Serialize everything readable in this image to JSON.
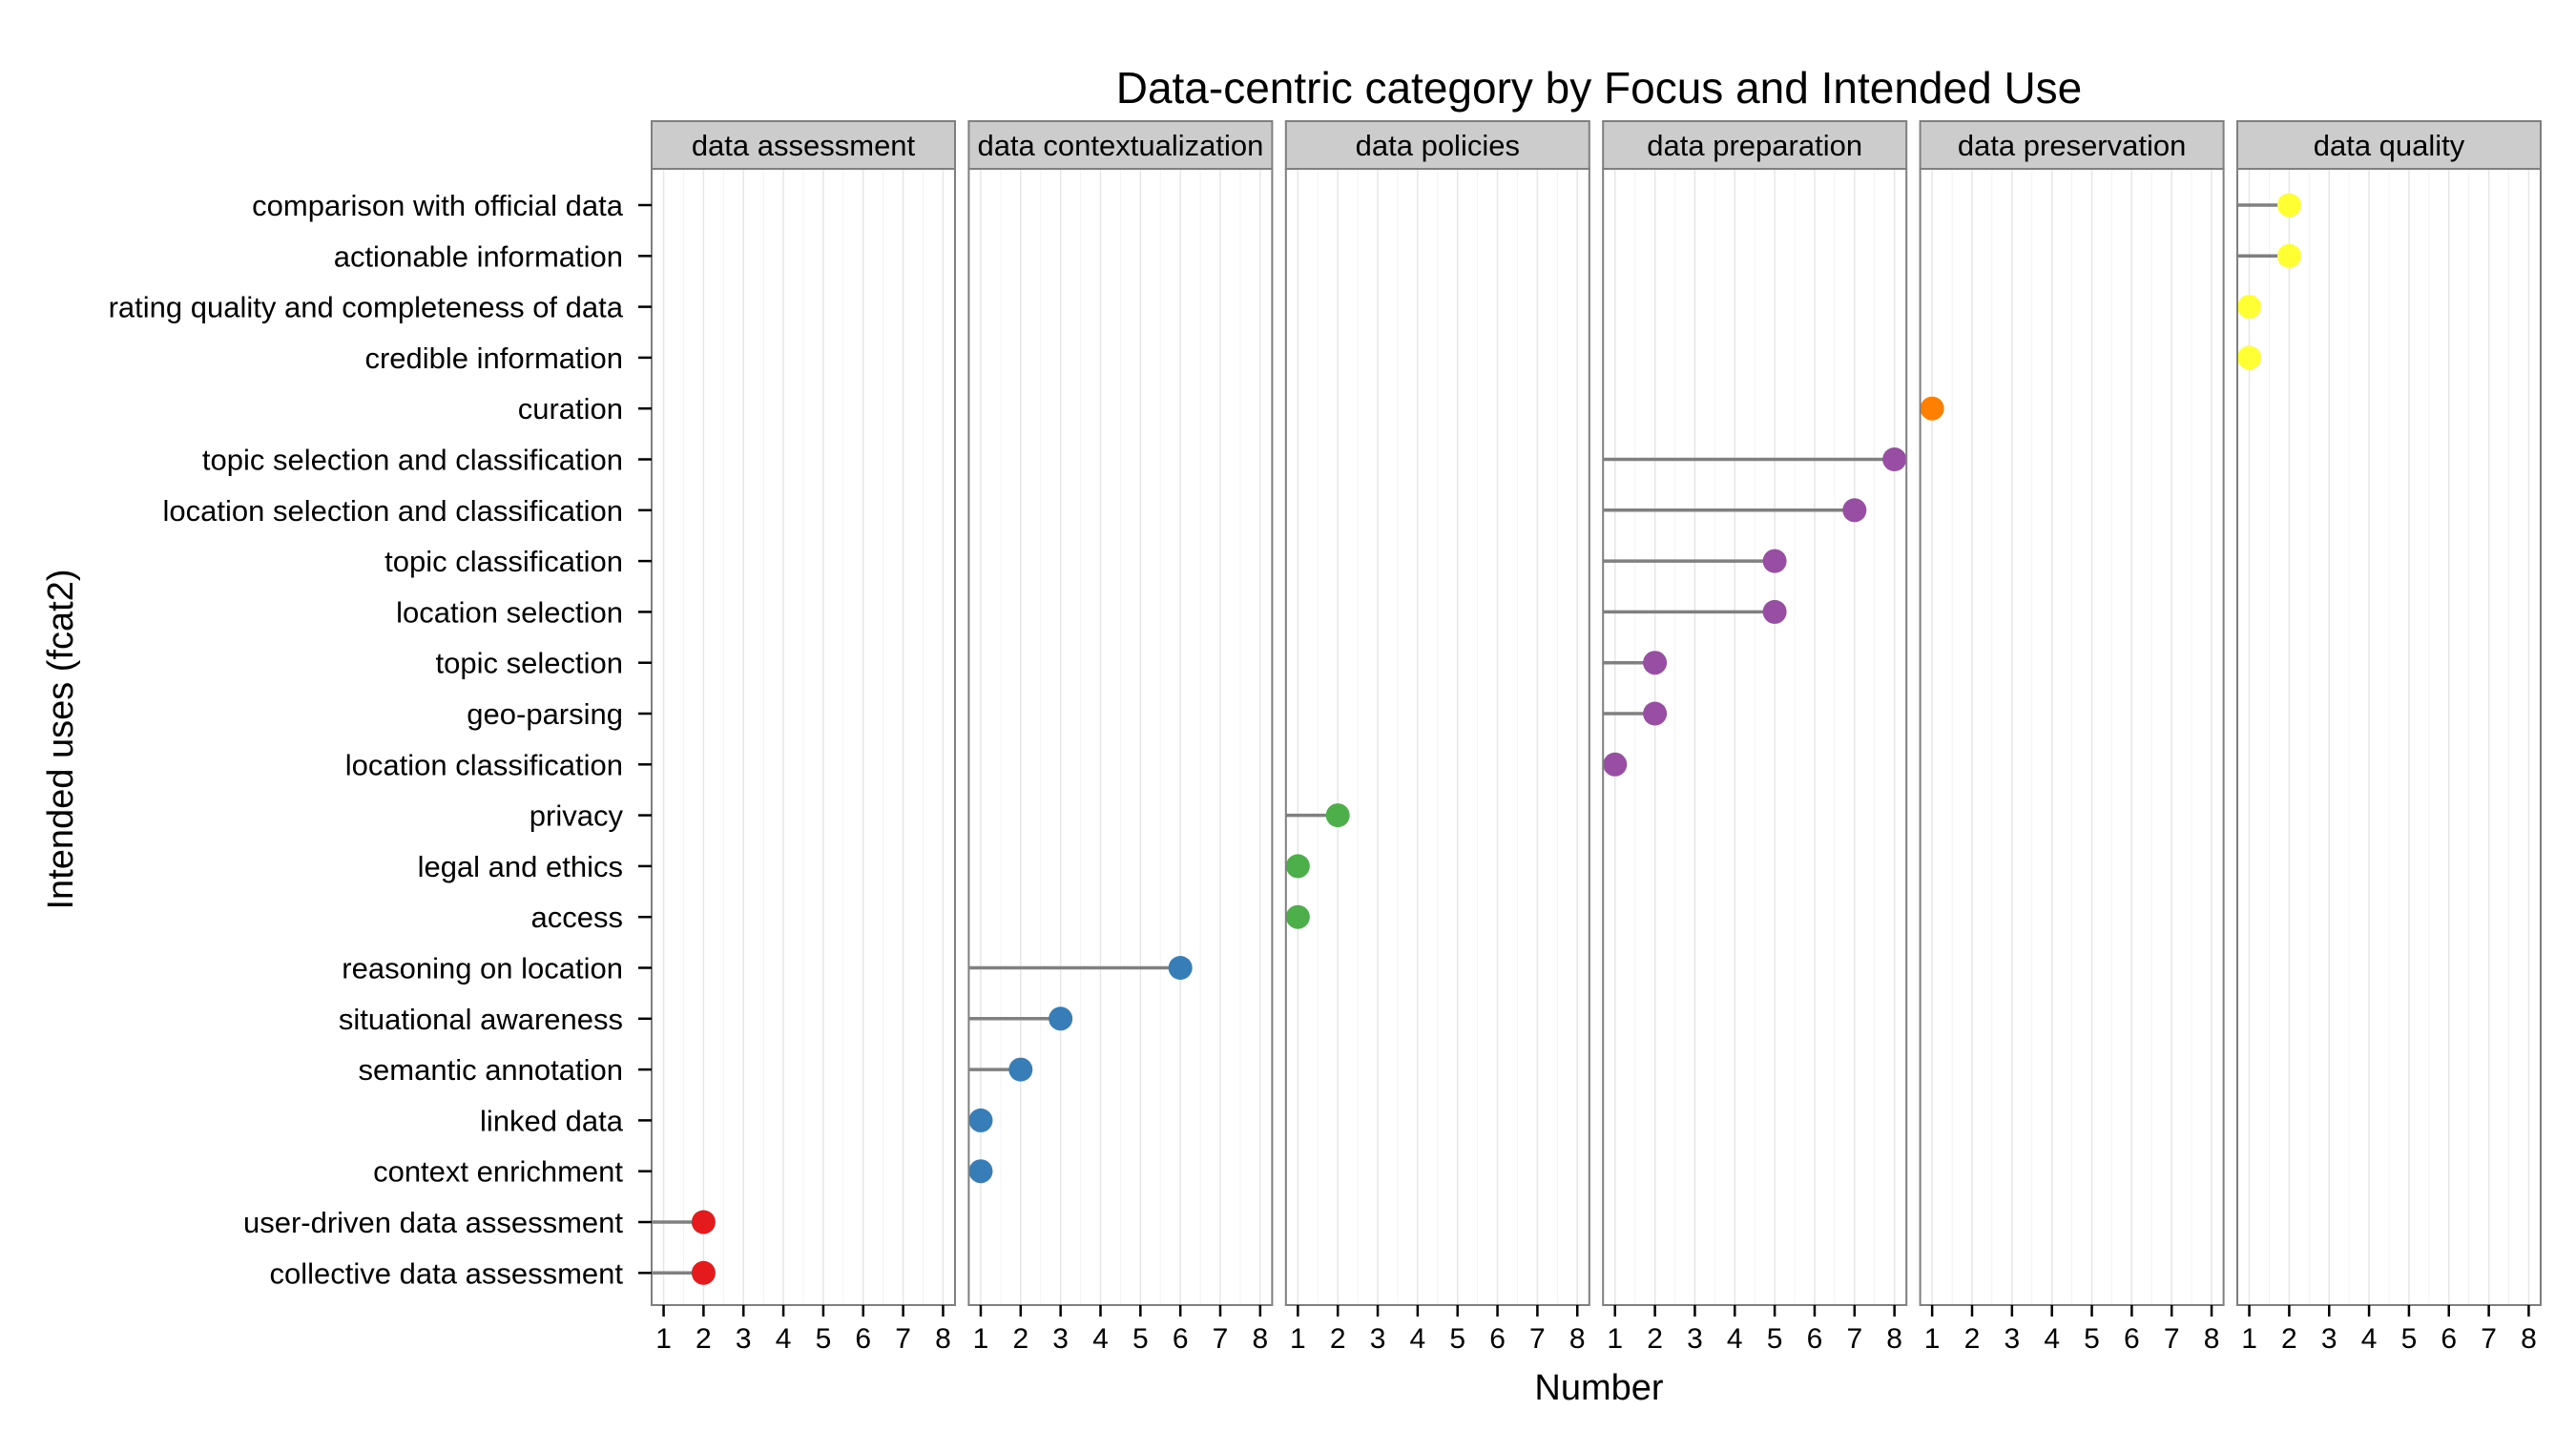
{
  "chart_data": {
    "type": "lollipop",
    "title": "Data-centric category by Focus and Intended Use",
    "xlabel": "Number",
    "ylabel": "Intended uses (fcat2)",
    "xlim": [
      0.7,
      8.3
    ],
    "x_ticks": [
      1,
      2,
      3,
      4,
      5,
      6,
      7,
      8
    ],
    "grid": true,
    "facet_layout": "single row of facets",
    "categories": [
      "comparison with official data",
      "actionable information",
      "rating quality and completeness of data",
      "credible information",
      "curation",
      "topic selection and classification",
      "location selection and classification",
      "topic classification",
      "location selection",
      "topic selection",
      "geo-parsing",
      "location classification",
      "privacy",
      "legal and ethics",
      "access",
      "reasoning on location",
      "situational awareness",
      "semantic annotation",
      "linked data",
      "context enrichment",
      "user-driven data assessment",
      "collective data assessment"
    ],
    "facets": [
      {
        "name": "data assessment",
        "color": "#E41A1C",
        "points": [
          {
            "category": "user-driven data assessment",
            "value": 2
          },
          {
            "category": "collective data assessment",
            "value": 2
          }
        ]
      },
      {
        "name": "data contextualization",
        "color": "#377EB8",
        "points": [
          {
            "category": "reasoning on location",
            "value": 6
          },
          {
            "category": "situational awareness",
            "value": 3
          },
          {
            "category": "semantic annotation",
            "value": 2
          },
          {
            "category": "linked data",
            "value": 1
          },
          {
            "category": "context enrichment",
            "value": 1
          }
        ]
      },
      {
        "name": "data policies",
        "color": "#4DAF4A",
        "points": [
          {
            "category": "privacy",
            "value": 2
          },
          {
            "category": "legal and ethics",
            "value": 1
          },
          {
            "category": "access",
            "value": 1
          }
        ]
      },
      {
        "name": "data preparation",
        "color": "#984EA3",
        "points": [
          {
            "category": "topic selection and classification",
            "value": 8
          },
          {
            "category": "location selection and classification",
            "value": 7
          },
          {
            "category": "topic classification",
            "value": 5
          },
          {
            "category": "location selection",
            "value": 5
          },
          {
            "category": "topic selection",
            "value": 2
          },
          {
            "category": "geo-parsing",
            "value": 2
          },
          {
            "category": "location classification",
            "value": 1
          }
        ]
      },
      {
        "name": "data preservation",
        "color": "#FF7F00",
        "points": [
          {
            "category": "curation",
            "value": 1
          }
        ]
      },
      {
        "name": "data quality",
        "color": "#FFFF33",
        "points": [
          {
            "category": "comparison with official data",
            "value": 2
          },
          {
            "category": "actionable information",
            "value": 2
          },
          {
            "category": "rating quality and completeness of data",
            "value": 1
          },
          {
            "category": "credible information",
            "value": 1
          }
        ]
      }
    ]
  }
}
